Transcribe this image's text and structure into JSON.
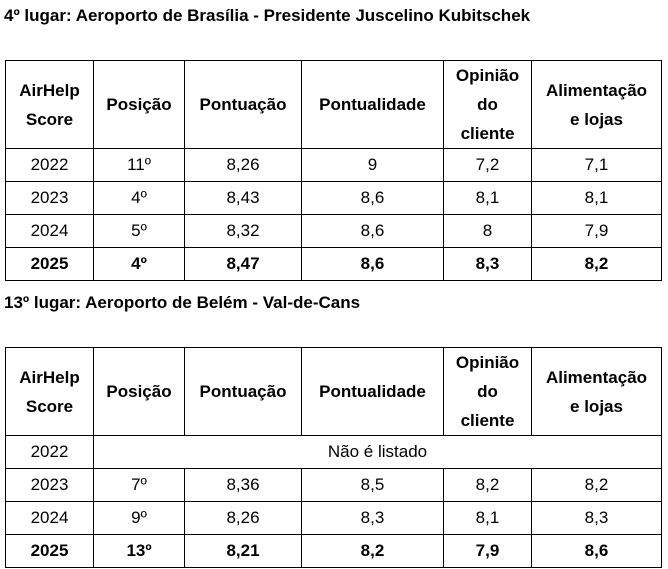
{
  "sections": [
    {
      "heading": "4º lugar: Aeroporto de Brasília - Presidente Juscelino Kubitschek",
      "headers": {
        "score": [
          "AirHelp",
          "Score"
        ],
        "position": "Posição",
        "points": "Pontuação",
        "punctuality": "Pontualidade",
        "opinion": [
          "Opinião",
          "do",
          "cliente"
        ],
        "food": [
          "Alimentação",
          "e lojas"
        ]
      },
      "rows": [
        {
          "year": "2022",
          "position": "11º",
          "points": "8,26",
          "punctuality": "9",
          "opinion": "7,2",
          "food": "7,1"
        },
        {
          "year": "2023",
          "position": "4º",
          "points": "8,43",
          "punctuality": "8,6",
          "opinion": "8,1",
          "food": "8,1"
        },
        {
          "year": "2024",
          "position": "5º",
          "points": "8,32",
          "punctuality": "8,6",
          "opinion": "8",
          "food": "7,9"
        },
        {
          "year": "2025",
          "position": "4º",
          "points": "8,47",
          "punctuality": "8,6",
          "opinion": "8,3",
          "food": "8,2"
        }
      ]
    },
    {
      "heading": "13º lugar: Aeroporto de Belém - Val-de-Cans",
      "headers": {
        "score": [
          "AirHelp",
          "Score"
        ],
        "position": "Posição",
        "points": "Pontuação",
        "punctuality": "Pontualidade",
        "opinion": [
          "Opinião",
          "do",
          "cliente"
        ],
        "food": [
          "Alimentação",
          "e lojas"
        ]
      },
      "not_listed_year": "2022",
      "not_listed_text": "Não é listado",
      "rows": [
        {
          "year": "2023",
          "position": "7º",
          "points": "8,36",
          "punctuality": "8,5",
          "opinion": "8,2",
          "food": "8,2"
        },
        {
          "year": "2024",
          "position": "9º",
          "points": "8,26",
          "punctuality": "8,3",
          "opinion": "8,1",
          "food": "8,3"
        },
        {
          "year": "2025",
          "position": "13º",
          "points": "8,21",
          "punctuality": "8,2",
          "opinion": "7,9",
          "food": "8,6"
        }
      ]
    }
  ]
}
